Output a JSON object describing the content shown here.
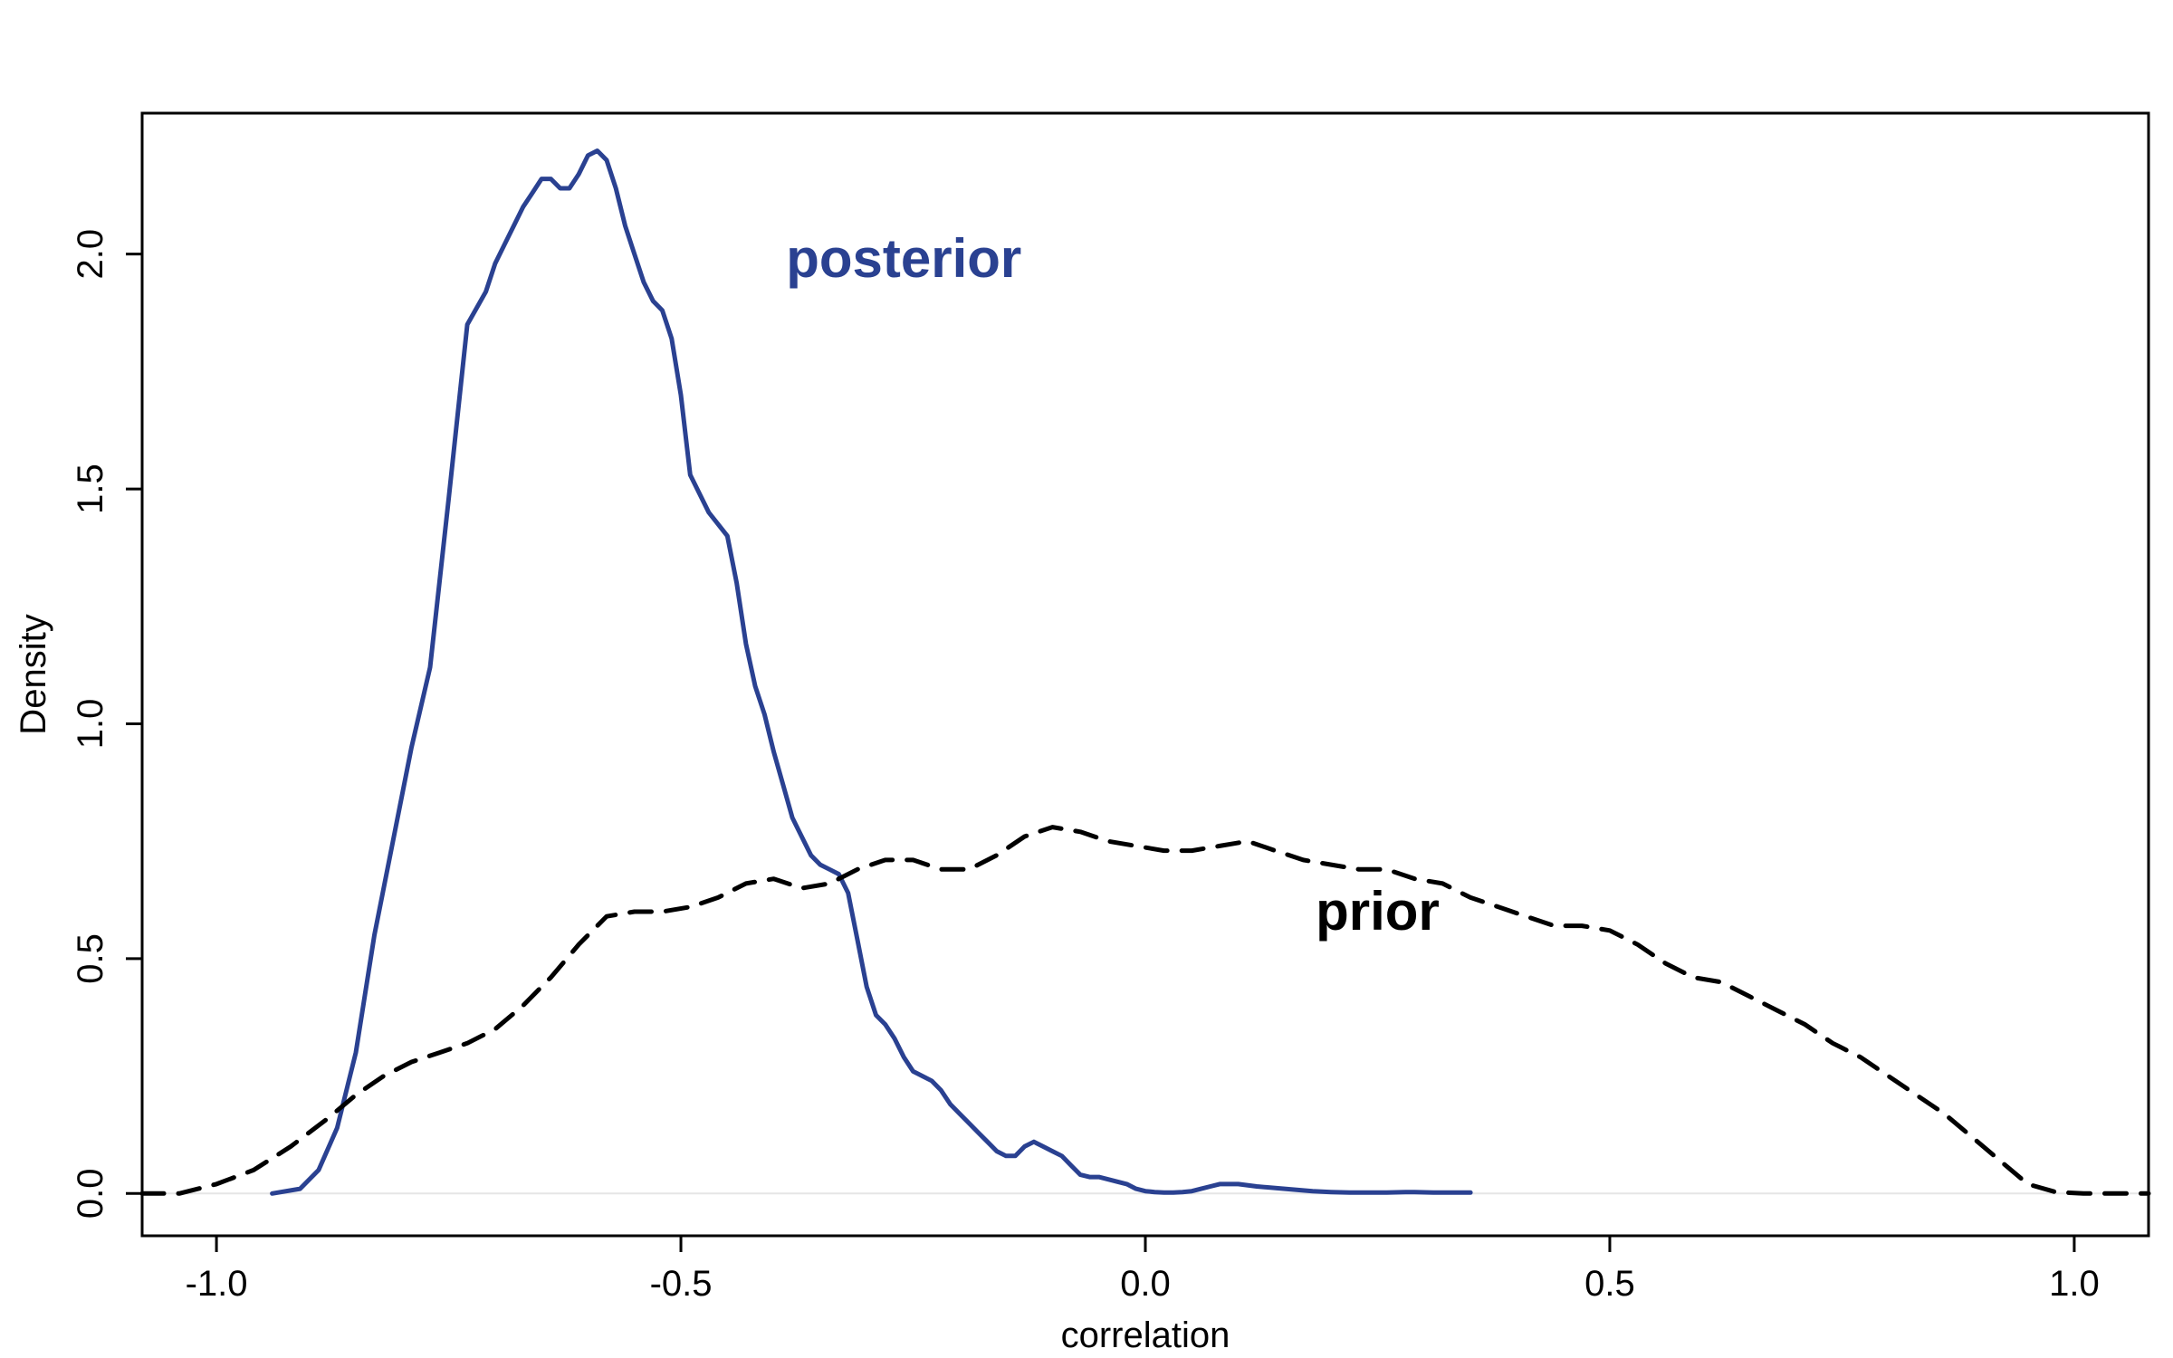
{
  "chart_data": {
    "type": "line",
    "title": "",
    "xlabel": "correlation",
    "ylabel": "Density",
    "xlim": [
      -1.08,
      1.08
    ],
    "ylim": [
      -0.09,
      2.3
    ],
    "xticks": [
      -1.0,
      -0.5,
      0.0,
      0.5,
      1.0
    ],
    "xtick_labels": [
      "-1.0",
      "-0.5",
      "0.0",
      "0.5",
      "1.0"
    ],
    "yticks": [
      0.0,
      0.5,
      1.0,
      1.5,
      2.0
    ],
    "ytick_labels": [
      "0.0",
      "0.5",
      "1.0",
      "1.5",
      "2.0"
    ],
    "grid": false,
    "baseline": 0,
    "series": [
      {
        "name": "posterior",
        "color": "#2a4191",
        "style": "solid",
        "x": [
          -0.94,
          -0.91,
          -0.89,
          -0.87,
          -0.85,
          -0.83,
          -0.81,
          -0.79,
          -0.77,
          -0.75,
          -0.73,
          -0.71,
          -0.7,
          -0.69,
          -0.68,
          -0.67,
          -0.66,
          -0.65,
          -0.64,
          -0.63,
          -0.62,
          -0.61,
          -0.6,
          -0.59,
          -0.58,
          -0.57,
          -0.56,
          -0.55,
          -0.54,
          -0.53,
          -0.52,
          -0.51,
          -0.5,
          -0.49,
          -0.47,
          -0.45,
          -0.44,
          -0.43,
          -0.42,
          -0.41,
          -0.4,
          -0.39,
          -0.38,
          -0.37,
          -0.36,
          -0.35,
          -0.34,
          -0.33,
          -0.32,
          -0.31,
          -0.3,
          -0.29,
          -0.28,
          -0.27,
          -0.26,
          -0.25,
          -0.24,
          -0.23,
          -0.22,
          -0.21,
          -0.2,
          -0.19,
          -0.18,
          -0.17,
          -0.16,
          -0.15,
          -0.14,
          -0.13,
          -0.12,
          -0.11,
          -0.1,
          -0.09,
          -0.08,
          -0.07,
          -0.06,
          -0.05,
          -0.04,
          -0.03,
          -0.02,
          -0.01,
          0.0,
          0.01,
          0.02,
          0.03,
          0.04,
          0.05,
          0.06,
          0.07,
          0.08,
          0.1,
          0.12,
          0.15,
          0.18,
          0.2,
          0.22,
          0.24,
          0.26,
          0.28,
          0.29,
          0.31,
          0.33,
          0.35
        ],
        "y": [
          0.0,
          0.01,
          0.05,
          0.14,
          0.3,
          0.55,
          0.75,
          0.95,
          1.12,
          1.48,
          1.85,
          1.92,
          1.98,
          2.02,
          2.06,
          2.1,
          2.13,
          2.16,
          2.16,
          2.14,
          2.14,
          2.17,
          2.21,
          2.22,
          2.2,
          2.14,
          2.06,
          2.0,
          1.94,
          1.9,
          1.88,
          1.82,
          1.7,
          1.53,
          1.45,
          1.4,
          1.3,
          1.17,
          1.08,
          1.02,
          0.94,
          0.87,
          0.8,
          0.76,
          0.72,
          0.7,
          0.69,
          0.68,
          0.64,
          0.54,
          0.44,
          0.38,
          0.36,
          0.33,
          0.29,
          0.26,
          0.25,
          0.24,
          0.22,
          0.19,
          0.17,
          0.15,
          0.13,
          0.11,
          0.09,
          0.08,
          0.08,
          0.1,
          0.11,
          0.1,
          0.09,
          0.08,
          0.06,
          0.04,
          0.035,
          0.035,
          0.03,
          0.025,
          0.02,
          0.01,
          0.005,
          0.003,
          0.002,
          0.002,
          0.003,
          0.005,
          0.01,
          0.015,
          0.02,
          0.02,
          0.015,
          0.01,
          0.005,
          0.003,
          0.002,
          0.002,
          0.002,
          0.003,
          0.003,
          0.002,
          0.002,
          0.002
        ],
        "label": "posterior"
      },
      {
        "name": "prior",
        "color": "#000000",
        "style": "dashed",
        "x": [
          -1.08,
          -1.04,
          -1.0,
          -0.96,
          -0.92,
          -0.88,
          -0.85,
          -0.82,
          -0.79,
          -0.76,
          -0.73,
          -0.7,
          -0.67,
          -0.64,
          -0.61,
          -0.58,
          -0.55,
          -0.52,
          -0.49,
          -0.46,
          -0.43,
          -0.4,
          -0.37,
          -0.34,
          -0.31,
          -0.28,
          -0.25,
          -0.22,
          -0.19,
          -0.16,
          -0.13,
          -0.1,
          -0.07,
          -0.04,
          -0.01,
          0.02,
          0.05,
          0.08,
          0.11,
          0.14,
          0.17,
          0.2,
          0.23,
          0.26,
          0.29,
          0.32,
          0.35,
          0.38,
          0.41,
          0.44,
          0.47,
          0.5,
          0.53,
          0.56,
          0.59,
          0.62,
          0.65,
          0.68,
          0.71,
          0.74,
          0.77,
          0.8,
          0.83,
          0.86,
          0.89,
          0.92,
          0.95,
          0.98,
          1.01,
          1.04,
          1.08
        ],
        "y": [
          0.0,
          0.0,
          0.02,
          0.05,
          0.1,
          0.16,
          0.21,
          0.25,
          0.28,
          0.3,
          0.32,
          0.35,
          0.4,
          0.46,
          0.53,
          0.59,
          0.6,
          0.6,
          0.61,
          0.63,
          0.66,
          0.67,
          0.65,
          0.66,
          0.69,
          0.71,
          0.71,
          0.69,
          0.69,
          0.72,
          0.76,
          0.78,
          0.77,
          0.75,
          0.74,
          0.73,
          0.73,
          0.74,
          0.75,
          0.73,
          0.71,
          0.7,
          0.69,
          0.69,
          0.67,
          0.66,
          0.63,
          0.61,
          0.59,
          0.57,
          0.57,
          0.56,
          0.53,
          0.49,
          0.46,
          0.45,
          0.42,
          0.39,
          0.36,
          0.32,
          0.29,
          0.25,
          0.21,
          0.17,
          0.12,
          0.07,
          0.02,
          0.003,
          0.0,
          0.0,
          0.0
        ],
        "label": "prior"
      }
    ],
    "annotations": [
      {
        "text": "posterior",
        "x": -0.26,
        "y": 1.99,
        "color": "#2a4191"
      },
      {
        "text": "prior",
        "x": 0.25,
        "y": 0.6,
        "color": "#000000"
      }
    ]
  }
}
